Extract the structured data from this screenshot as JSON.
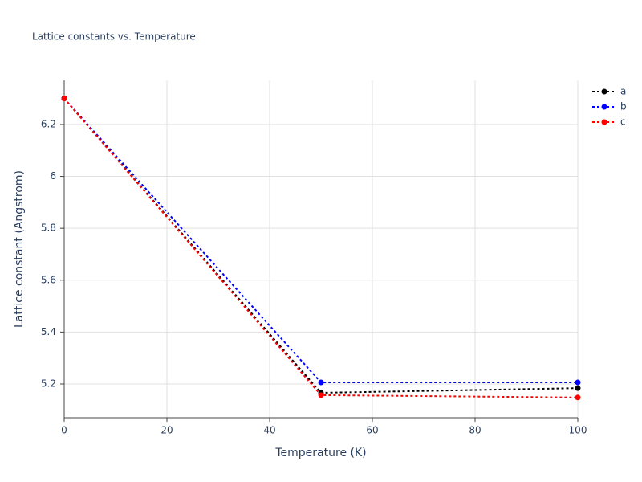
{
  "chart_data": {
    "type": "line",
    "title": "Lattice constants vs. Temperature",
    "x_label": "Temperature (K)",
    "y_label": "Lattice constant (Angstrom)",
    "x": [
      0,
      50,
      100
    ],
    "series": [
      {
        "name": "a",
        "color": "#000000",
        "values": [
          6.3,
          5.166,
          5.184
        ]
      },
      {
        "name": "b",
        "color": "#0000ff",
        "values": [
          6.3,
          5.206,
          5.206
        ]
      },
      {
        "name": "c",
        "color": "#ff0000",
        "values": [
          6.3,
          5.157,
          5.148
        ]
      }
    ],
    "xlim": [
      0,
      100
    ],
    "xticks": [
      0,
      20,
      40,
      60,
      80,
      100
    ],
    "ylim": [
      5.07,
      6.37
    ],
    "yticks": [
      5.2,
      5.4,
      5.6,
      5.8,
      6,
      6.2
    ],
    "grid": true,
    "legend": "top-right",
    "line_style": "dotted"
  }
}
